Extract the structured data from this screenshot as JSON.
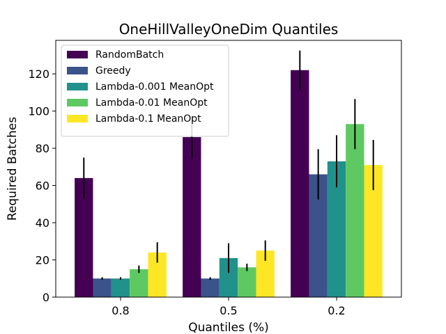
{
  "chart_data": {
    "type": "bar",
    "title": "OneHillValleyOneDim Quantiles",
    "xlabel": "Quantiles (%)",
    "ylabel": "Required Batches",
    "categories": [
      "0.8",
      "0.5",
      "0.2"
    ],
    "ylim": [
      0,
      138
    ],
    "yticks": [
      0,
      20,
      40,
      60,
      80,
      100,
      120
    ],
    "grid": false,
    "legend_position": "top-left",
    "series": [
      {
        "name": "RandomBatch",
        "color": "#440154",
        "values": [
          64,
          86,
          122
        ],
        "errors": [
          11,
          11.5,
          10.5
        ]
      },
      {
        "name": "Greedy",
        "color": "#3b528b",
        "values": [
          10,
          10,
          66
        ],
        "errors": [
          0.7,
          0.7,
          13.5
        ]
      },
      {
        "name": "Lambda-0.001 MeanOpt",
        "color": "#21918c",
        "values": [
          10,
          21,
          73
        ],
        "errors": [
          0.7,
          8,
          14
        ]
      },
      {
        "name": "Lambda-0.01 MeanOpt",
        "color": "#5ec962",
        "values": [
          15,
          16,
          93
        ],
        "errors": [
          2,
          2,
          13.5
        ]
      },
      {
        "name": "Lambda-0.1 MeanOpt",
        "color": "#fde725",
        "values": [
          24,
          25,
          71
        ],
        "errors": [
          5.5,
          5.5,
          13.5
        ]
      }
    ]
  }
}
